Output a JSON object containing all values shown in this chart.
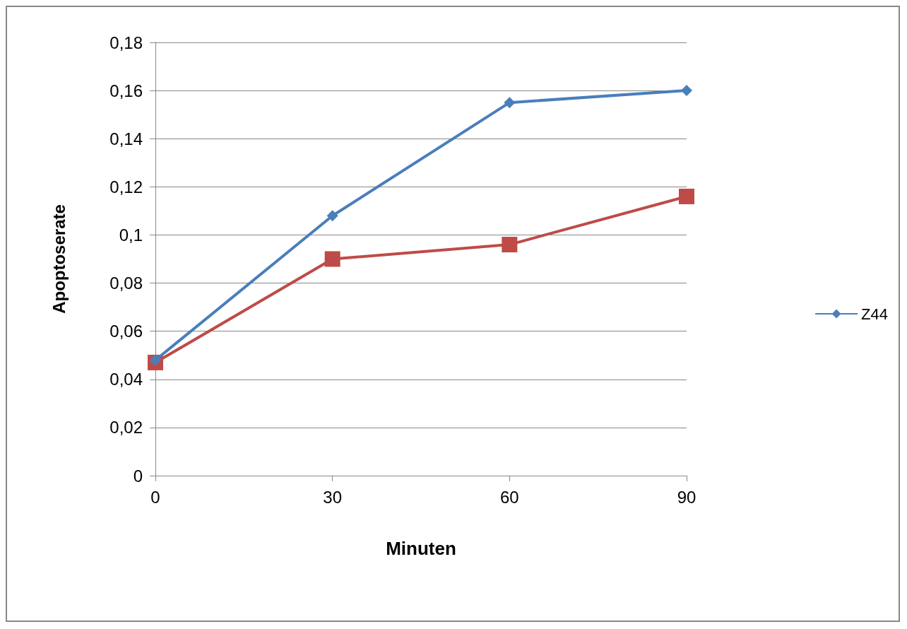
{
  "chart_data": {
    "type": "line",
    "xlabel": "Minuten",
    "ylabel": "Apoptoserate",
    "x": [
      0,
      30,
      60,
      90
    ],
    "xlim": [
      0,
      90
    ],
    "xticks": [
      0,
      30,
      60,
      90
    ],
    "ylim": [
      0,
      0.18
    ],
    "yticks": [
      {
        "value": 0,
        "label": "0"
      },
      {
        "value": 0.02,
        "label": "0,02"
      },
      {
        "value": 0.04,
        "label": "0,04"
      },
      {
        "value": 0.06,
        "label": "0,06"
      },
      {
        "value": 0.08,
        "label": "0,08"
      },
      {
        "value": 0.1,
        "label": "0,1"
      },
      {
        "value": 0.12,
        "label": "0,12"
      },
      {
        "value": 0.14,
        "label": "0,14"
      },
      {
        "value": 0.16,
        "label": "0,16"
      },
      {
        "value": 0.18,
        "label": "0,18"
      }
    ],
    "grid": "y",
    "legend": "right",
    "series": [
      {
        "name": "Z44",
        "color": "#4a7ebb",
        "marker": "diamond",
        "values": [
          0.048,
          0.108,
          0.155,
          0.16
        ]
      },
      {
        "color": "#be4b48",
        "marker": "square",
        "values": [
          0.047,
          0.09,
          0.096,
          0.116
        ]
      }
    ]
  }
}
